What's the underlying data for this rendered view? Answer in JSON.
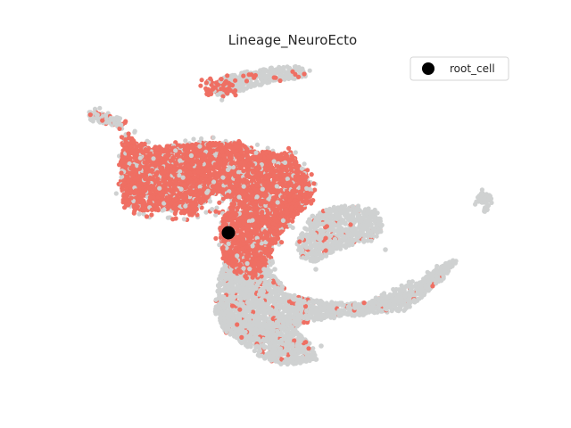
{
  "chart_data": {
    "type": "scatter",
    "title": "Lineage_NeuroEcto",
    "xlabel": "",
    "ylabel": "",
    "grid": false,
    "axes_visible": false,
    "legend_position": "top-right",
    "legend": [
      {
        "label": "root_cell",
        "marker": "circle",
        "color": "#000000"
      }
    ],
    "colors": {
      "lineage_cells": "#ef6f63",
      "other_cells": "#cfd1d1",
      "root_cell": "#000000"
    },
    "series": [
      {
        "name": "root_cell",
        "x": [
          256
        ],
        "y": [
          261
        ]
      }
    ]
  }
}
